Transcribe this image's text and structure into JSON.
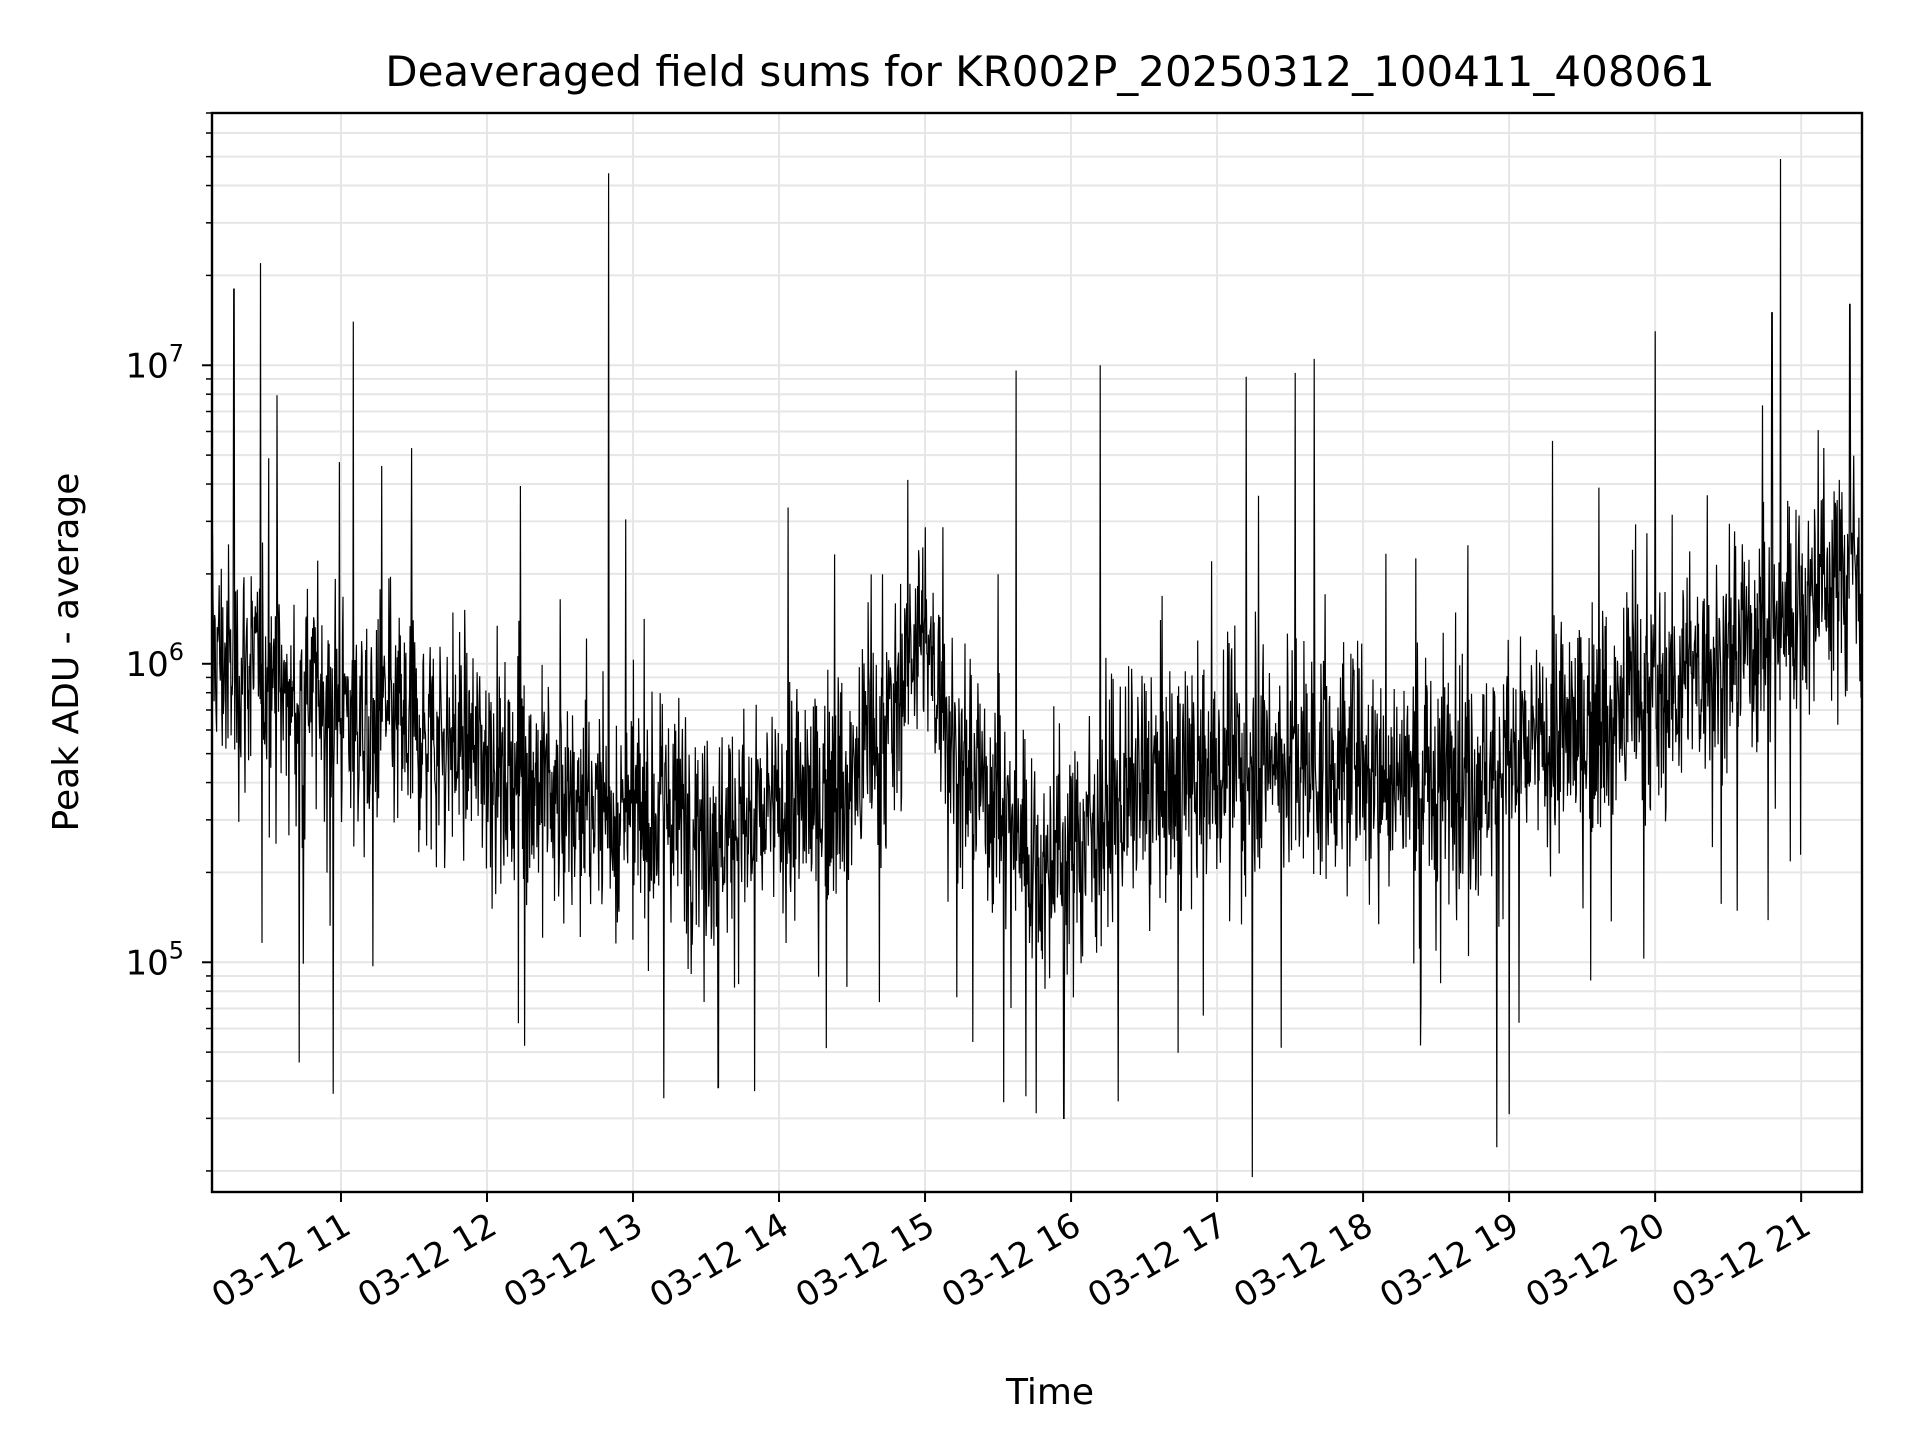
{
  "chart_data": {
    "type": "line",
    "title": "Deaveraged field sums for KR002P_20250312_100411_408061",
    "xlabel": "Time",
    "ylabel": "Peak ADU - average",
    "x_scale": "time",
    "y_scale": "log",
    "xlim": [
      "03-12 10:07",
      "03-12 21:25"
    ],
    "ylim": [
      17000,
      70000000
    ],
    "x_ticks": [
      "03-12 11",
      "03-12 12",
      "03-12 13",
      "03-12 14",
      "03-12 15",
      "03-12 16",
      "03-12 17",
      "03-12 18",
      "03-12 19",
      "03-12 20",
      "03-12 21"
    ],
    "y_ticks": [
      {
        "value": 100000,
        "base": "10",
        "exp": "5"
      },
      {
        "value": 1000000,
        "base": "10",
        "exp": "6"
      },
      {
        "value": 10000000,
        "base": "10",
        "exp": "7"
      }
    ],
    "grid": true,
    "series_color": "#000000",
    "series": [
      {
        "x": [
          "03-12 10:07",
          "03-12 10:15",
          "03-12 10:22",
          "03-12 10:30",
          "03-12 10:40",
          "03-12 10:50",
          "03-12 11:00",
          "03-12 11:10",
          "03-12 11:20",
          "03-12 11:30",
          "03-12 11:45",
          "03-12 12:00",
          "03-12 12:15",
          "03-12 12:30",
          "03-12 12:45",
          "03-12 12:50",
          "03-12 13:00",
          "03-12 13:15",
          "03-12 13:30",
          "03-12 13:45",
          "03-12 14:00",
          "03-12 14:15",
          "03-12 14:30",
          "03-12 14:45",
          "03-12 14:55",
          "03-12 15:05",
          "03-12 15:15",
          "03-12 15:30",
          "03-12 15:45",
          "03-12 15:50",
          "03-12 16:00",
          "03-12 16:15",
          "03-12 16:30",
          "03-12 16:45",
          "03-12 17:00",
          "03-12 17:15",
          "03-12 17:30",
          "03-12 17:45",
          "03-12 18:00",
          "03-12 18:15",
          "03-12 18:30",
          "03-12 18:45",
          "03-12 18:55",
          "03-12 19:00",
          "03-12 19:15",
          "03-12 19:30",
          "03-12 19:45",
          "03-12 20:00",
          "03-12 20:15",
          "03-12 20:30",
          "03-12 20:45",
          "03-12 21:00",
          "03-12 21:15",
          "03-12 21:25"
        ],
        "y": [
          1200000,
          900000,
          1000000,
          900000,
          700000,
          800000,
          700000,
          600000,
          650000,
          600000,
          550000,
          500000,
          420000,
          350000,
          320000,
          330000,
          300000,
          320000,
          300000,
          280000,
          310000,
          350000,
          420000,
          600000,
          1300000,
          900000,
          450000,
          350000,
          220000,
          200000,
          240000,
          320000,
          380000,
          400000,
          420000,
          480000,
          500000,
          450000,
          480000,
          420000,
          420000,
          430000,
          450000,
          480000,
          520000,
          600000,
          700000,
          800000,
          900000,
          1100000,
          1300000,
          1600000,
          2000000,
          2100000
        ],
        "spikes": [
          {
            "x": "03-12 10:27",
            "y": 22000000
          },
          {
            "x": "03-12 10:16",
            "y": 18000000
          },
          {
            "x": "03-12 11:05",
            "y": 14000000
          },
          {
            "x": "03-12 12:50",
            "y": 44000000
          },
          {
            "x": "03-12 16:12",
            "y": 10000000
          },
          {
            "x": "03-12 17:40",
            "y": 10500000
          },
          {
            "x": "03-12 20:00",
            "y": 13000000
          },
          {
            "x": "03-12 20:48",
            "y": 15000000
          },
          {
            "x": "03-12 21:20",
            "y": 16000000
          },
          {
            "x": "03-12 15:57",
            "y": 30000
          },
          {
            "x": "03-12 18:55",
            "y": 24000
          },
          {
            "x": "03-12 13:35",
            "y": 38000
          },
          {
            "x": "03-12 19:00",
            "y": 31000
          }
        ]
      }
    ]
  }
}
